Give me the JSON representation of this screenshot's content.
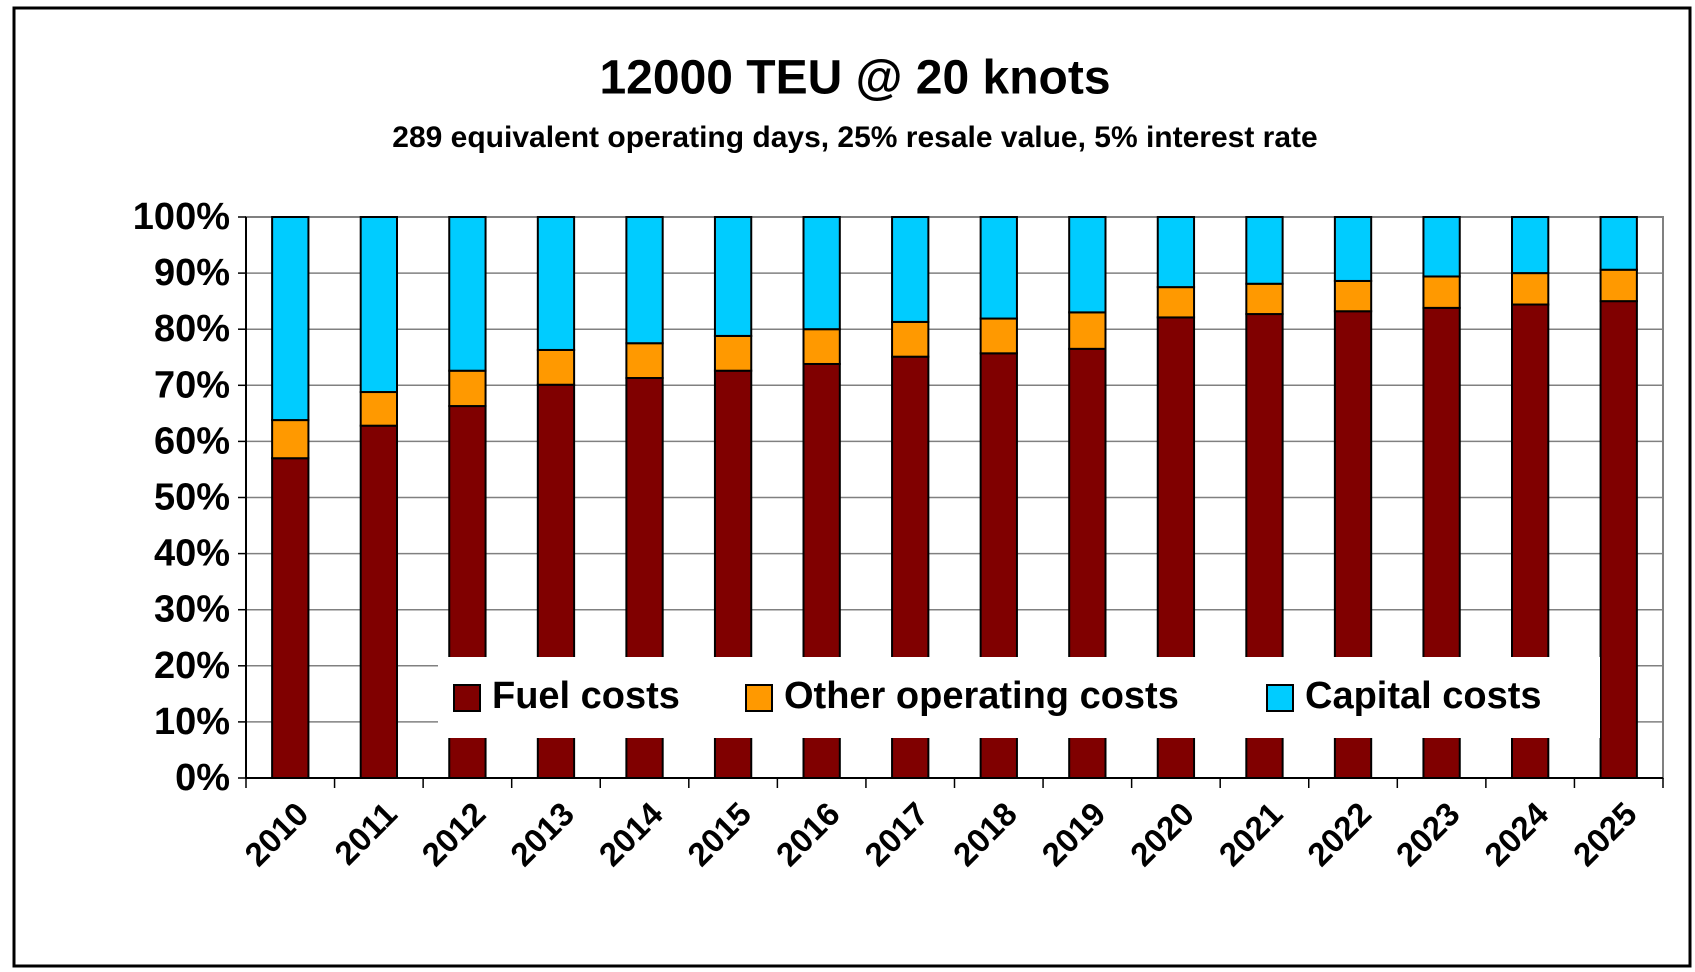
{
  "chart_data": {
    "type": "stacked_bar",
    "title": "12000 TEU @ 20 knots",
    "subtitle": "289 equivalent operating days, 25% resale value, 5% interest rate",
    "categories": [
      "2010",
      "2011",
      "2012",
      "2013",
      "2014",
      "2015",
      "2016",
      "2017",
      "2018",
      "2019",
      "2020",
      "2021",
      "2022",
      "2023",
      "2024",
      "2025"
    ],
    "series": [
      {
        "name": "Fuel costs",
        "color": "#800000",
        "values": [
          57.0,
          62.8,
          66.3,
          70.1,
          71.3,
          72.6,
          73.8,
          75.1,
          75.7,
          76.5,
          82.1,
          82.7,
          83.2,
          83.8,
          84.4,
          85.0
        ]
      },
      {
        "name": "Other operating costs",
        "color": "#FF9900",
        "values": [
          6.8,
          6.0,
          6.3,
          6.2,
          6.2,
          6.2,
          6.2,
          6.2,
          6.2,
          6.5,
          5.4,
          5.4,
          5.4,
          5.6,
          5.6,
          5.6
        ]
      },
      {
        "name": "Capital costs",
        "color": "#00CCFF",
        "values": [
          36.2,
          31.2,
          27.4,
          23.7,
          22.5,
          21.2,
          20.0,
          18.7,
          18.1,
          17.0,
          12.5,
          11.9,
          11.4,
          10.6,
          10.0,
          9.4
        ]
      }
    ],
    "ylim": [
      0,
      100
    ],
    "yticks": [
      {
        "value": 0,
        "label": "0%"
      },
      {
        "value": 10,
        "label": "10%"
      },
      {
        "value": 20,
        "label": "20%"
      },
      {
        "value": 30,
        "label": "30%"
      },
      {
        "value": 40,
        "label": "40%"
      },
      {
        "value": 50,
        "label": "50%"
      },
      {
        "value": 60,
        "label": "60%"
      },
      {
        "value": 70,
        "label": "70%"
      },
      {
        "value": 80,
        "label": "80%"
      },
      {
        "value": 90,
        "label": "90%"
      },
      {
        "value": 100,
        "label": "100%"
      }
    ],
    "grid": true,
    "legend": "bottom"
  }
}
